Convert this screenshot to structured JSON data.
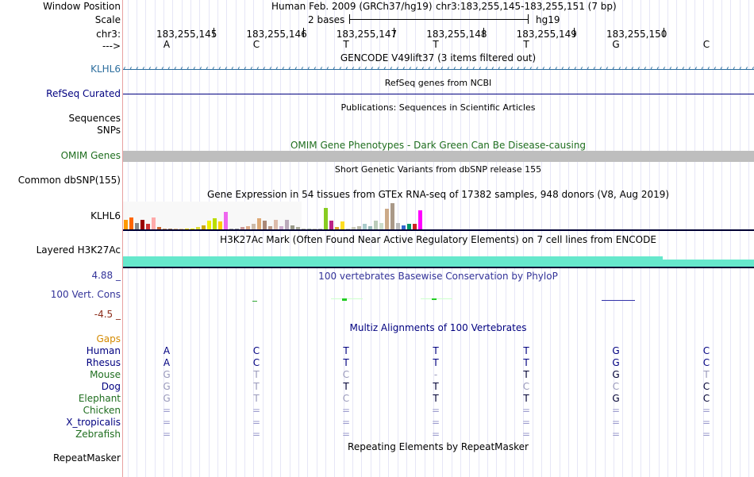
{
  "header": {
    "window_position_label": "Window Position",
    "scale_label": "Scale",
    "chrom_label": "chr3:",
    "strand_label": "--->",
    "assembly": "Human Feb. 2009 (GRCh37/hg19)",
    "position": "chr3:183,255,145-183,255,151 (7 bp)",
    "scale_text": "2 bases",
    "scale_assembly": "hg19",
    "coords": [
      "183,255,145",
      "183,255,146",
      "183,255,147",
      "183,255,148",
      "183,255,149",
      "183,255,150"
    ],
    "bases": [
      "A",
      "C",
      "T",
      "T",
      "T",
      "G",
      "C"
    ]
  },
  "tracks": {
    "gencode": {
      "title": "GENCODE V49lift37 (3 items filtered out)",
      "gene": "KLHL6",
      "color": "#2c6e9e"
    },
    "refseq": {
      "title": "RefSeq genes from NCBI",
      "label": "RefSeq Curated",
      "color": "#000080"
    },
    "publications": {
      "title": "Publications: Sequences in Scientific Articles",
      "label1": "Sequences",
      "label2": "SNPs"
    },
    "omim": {
      "title": "OMIM Gene Phenotypes - Dark Green Can Be Disease-causing",
      "label": "OMIM Genes",
      "color": "#1f6e1f"
    },
    "dbsnp": {
      "title": "Short Genetic Variants from dbSNP release 155",
      "label": "Common dbSNP(155)"
    },
    "gtex": {
      "title": "Gene Expression in 54 tissues from GTEx RNA-seq of 17382 samples, 948 donors (V8, Aug 2019)",
      "label": "KLHL6"
    },
    "h3k27ac": {
      "title": "H3K27Ac Mark (Often Found Near Active Regulatory Elements) on 7 cell lines from ENCODE",
      "label": "Layered H3K27Ac",
      "color": "#66e8cc"
    },
    "phylop": {
      "title": "100 vertebrates Basewise Conservation by PhyloP",
      "label": "100 Vert. Cons",
      "max": "4.88 _",
      "min": "-4.5 _"
    },
    "multiz": {
      "title": "Multiz Alignments of 100 Vertebrates",
      "gaps_label": "Gaps",
      "species": [
        {
          "name": "Human",
          "bases": [
            "A",
            "C",
            "T",
            "T",
            "T",
            "G",
            "C"
          ]
        },
        {
          "name": "Rhesus",
          "bases": [
            "A",
            "C",
            "T",
            "T",
            "T",
            "G",
            "C"
          ]
        },
        {
          "name": "Mouse",
          "bases": [
            "G",
            "T",
            "C",
            "-",
            "T",
            "G",
            "T"
          ]
        },
        {
          "name": "Dog",
          "bases": [
            "G",
            "T",
            "T",
            "T",
            "C",
            "C",
            "C"
          ]
        },
        {
          "name": "Elephant",
          "bases": [
            "G",
            "T",
            "C",
            "T",
            "T",
            "G",
            "C"
          ]
        },
        {
          "name": "Chicken",
          "bases": [
            "=",
            "=",
            "=",
            "=",
            "=",
            "=",
            "="
          ]
        },
        {
          "name": "X_tropicalis",
          "bases": [
            "=",
            "=",
            "=",
            "=",
            "=",
            "=",
            "="
          ]
        },
        {
          "name": "Zebrafish",
          "bases": [
            "=",
            "=",
            "=",
            "=",
            "=",
            "=",
            "="
          ]
        }
      ]
    },
    "repeatmasker": {
      "title": "Repeating Elements by RepeatMasker",
      "label": "RepeatMasker"
    }
  },
  "gtex_bars": [
    {
      "h": 0.45,
      "c": "#ff9900"
    },
    {
      "h": 0.55,
      "c": "#ff6600"
    },
    {
      "h": 0.3,
      "c": "#888888"
    },
    {
      "h": 0.45,
      "c": "#990000"
    },
    {
      "h": 0.25,
      "c": "#cc3333"
    },
    {
      "h": 0.55,
      "c": "#ffaaaa"
    },
    {
      "h": 0.1,
      "c": "#cc6633"
    },
    {
      "h": 0.05,
      "c": "#cc9966"
    },
    {
      "h": 0.05,
      "c": "#aa8866"
    },
    {
      "h": 0.05,
      "c": "#ddbb88"
    },
    {
      "h": 0.05,
      "c": "#eecc99"
    },
    {
      "h": 0.05,
      "c": "#ffdd00"
    },
    {
      "h": 0.05,
      "c": "#eeee00"
    },
    {
      "h": 0.1,
      "c": "#dddd33"
    },
    {
      "h": 0.2,
      "c": "#ccaa00"
    },
    {
      "h": 0.4,
      "c": "#eeee00"
    },
    {
      "h": 0.5,
      "c": "#bbdd00"
    },
    {
      "h": 0.35,
      "c": "#ffcc00"
    },
    {
      "h": 0.8,
      "c": "#ee66ee"
    },
    {
      "h": 0.05,
      "c": "#aaaaaa"
    },
    {
      "h": 0.05,
      "c": "#999999"
    },
    {
      "h": 0.1,
      "c": "#cc9999"
    },
    {
      "h": 0.15,
      "c": "#ddaa88"
    },
    {
      "h": 0.25,
      "c": "#ccbbaa"
    },
    {
      "h": 0.5,
      "c": "#ddaa77"
    },
    {
      "h": 0.4,
      "c": "#aa8877"
    },
    {
      "h": 0.15,
      "c": "#bb9988"
    },
    {
      "h": 0.45,
      "c": "#ddbbaa"
    },
    {
      "h": 0.15,
      "c": "#ccaacc"
    },
    {
      "h": 0.45,
      "c": "#bbaabb"
    },
    {
      "h": 0.2,
      "c": "#999988"
    },
    {
      "h": 0.1,
      "c": "#aaaa99"
    },
    {
      "h": 0.05,
      "c": "#bbbbaa"
    },
    {
      "h": 0.05,
      "c": "#aabbaa"
    },
    {
      "h": 0.05,
      "c": "#ccccbb"
    },
    {
      "h": 0.05,
      "c": "#bbbbbb"
    },
    {
      "h": 1.0,
      "c": "#88cc22"
    },
    {
      "h": 0.4,
      "c": "#bb2288"
    },
    {
      "h": 0.1,
      "c": "#ddaa33"
    },
    {
      "h": 0.35,
      "c": "#ffdd22"
    },
    {
      "h": 0.05,
      "c": "#cccccc"
    },
    {
      "h": 0.1,
      "c": "#ccccbb"
    },
    {
      "h": 0.15,
      "c": "#bbbbaa"
    },
    {
      "h": 0.25,
      "c": "#aacccc"
    },
    {
      "h": 0.15,
      "c": "#99bbbb"
    },
    {
      "h": 0.4,
      "c": "#bbccbb"
    },
    {
      "h": 0.3,
      "c": "#ccddcc"
    },
    {
      "h": 0.95,
      "c": "#ccaa88"
    },
    {
      "h": 1.2,
      "c": "#aa9988"
    },
    {
      "h": 0.3,
      "c": "#bbbbbb"
    },
    {
      "h": 0.2,
      "c": "#3366cc"
    },
    {
      "h": 0.25,
      "c": "#009966"
    },
    {
      "h": 0.25,
      "c": "#cc2222"
    },
    {
      "h": 0.9,
      "c": "#ff00ff"
    }
  ]
}
